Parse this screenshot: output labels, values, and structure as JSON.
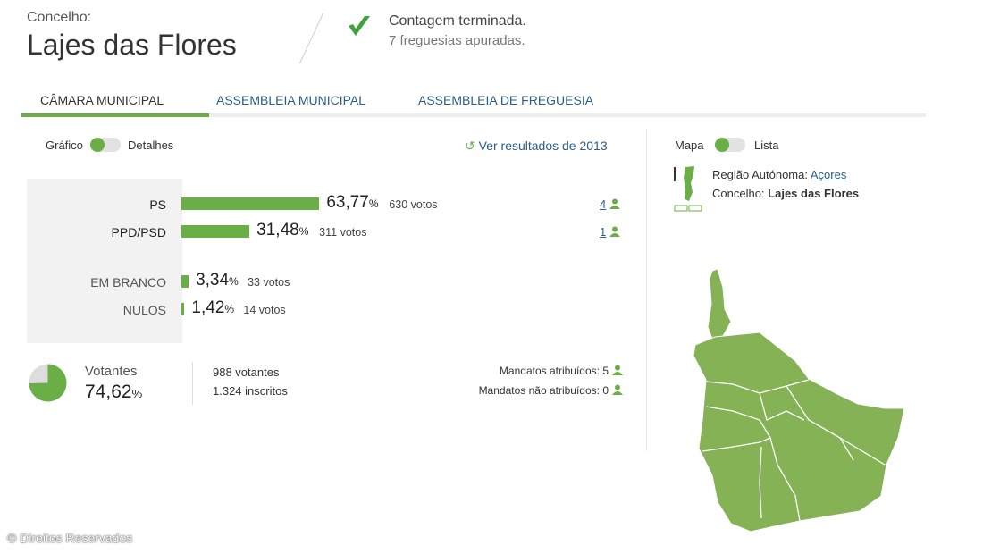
{
  "header": {
    "concelho_label": "Concelho:",
    "concelho_name": "Lajes das Flores",
    "status_title": "Contagem terminada.",
    "status_sub": "7 freguesias apuradas."
  },
  "tabs": [
    {
      "label": "CÂMARA MUNICIPAL",
      "active": true
    },
    {
      "label": "ASSEMBLEIA MUNICIPAL"
    },
    {
      "label": "ASSEMBLEIA DE FREGUESIA"
    }
  ],
  "view_toggle": {
    "left": "Gráfico",
    "right": "Detalhes"
  },
  "history_link": "Ver resultados de 2013",
  "results": [
    {
      "party": "PS",
      "percent": "63,77",
      "value": 63.77,
      "votes": "630 votos",
      "mandates": "4"
    },
    {
      "party": "PPD/PSD",
      "percent": "31,48",
      "value": 31.48,
      "votes": "311 votos",
      "mandates": "1"
    },
    {
      "party": "EM BRANCO",
      "percent": "3,34",
      "value": 3.34,
      "votes": "33 votos"
    },
    {
      "party": "NULOS",
      "percent": "1,42",
      "value": 1.42,
      "votes": "14 votos"
    }
  ],
  "percent_sign": "%",
  "turnout": {
    "label": "Votantes",
    "percent": "74,62",
    "value": 74.62,
    "voters": "988 votantes",
    "registered": "1.324 inscritos",
    "assigned": "Mandatos atribuídos: 5",
    "unassigned": "Mandatos não atribuídos: 0"
  },
  "map_toggle": {
    "left": "Mapa",
    "right": "Lista"
  },
  "location": {
    "region_label": "Região Autónoma:",
    "region": "Açores",
    "concelho_label": "Concelho:",
    "concelho": "Lajes das Flores"
  },
  "footer": "© Direitos Reservados",
  "colors": {
    "accent": "#6aaf46",
    "link": "#2b5d8a"
  }
}
